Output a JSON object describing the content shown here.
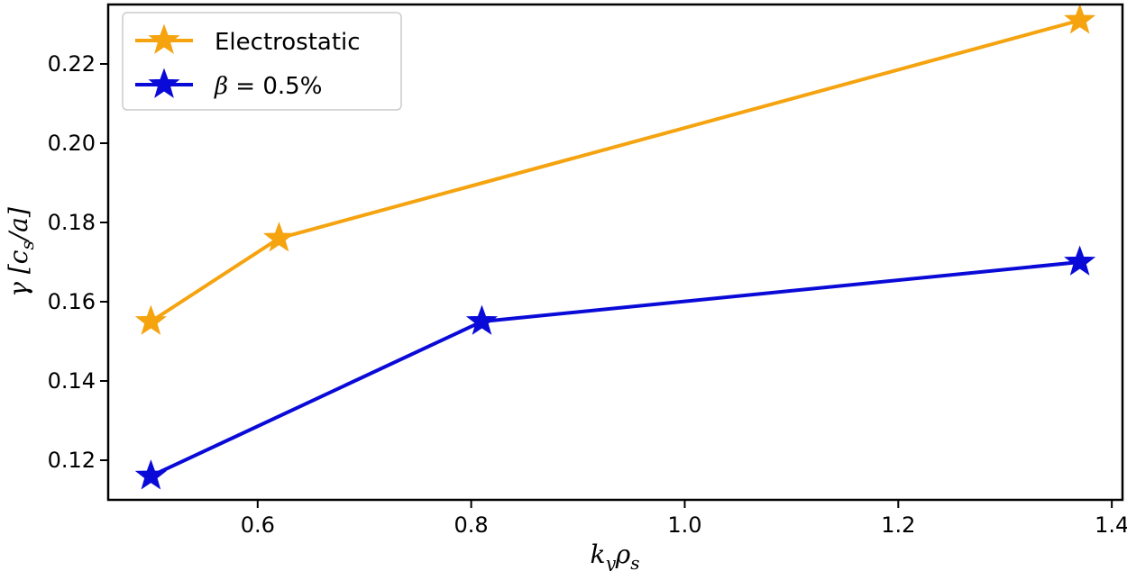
{
  "chart_data": {
    "type": "line",
    "title": "",
    "xlabel": "k_y ρ_s",
    "xlabel_parts": {
      "main1": "k",
      "sub1": "y",
      "main2": "ρ",
      "sub2": "s"
    },
    "ylabel": "γ [c_s/a]",
    "ylabel_parts": {
      "pre": "γ [c",
      "sub": "s",
      "post": "/a]"
    },
    "xlim": [
      0.46,
      1.41
    ],
    "ylim": [
      0.11,
      0.235
    ],
    "xticks": [
      0.6,
      0.8,
      1.0,
      1.2,
      1.4
    ],
    "xtick_labels": [
      "0.6",
      "0.8",
      "1.0",
      "1.2",
      "1.4"
    ],
    "yticks": [
      0.12,
      0.14,
      0.16,
      0.18,
      0.2,
      0.22
    ],
    "ytick_labels": [
      "0.12",
      "0.14",
      "0.16",
      "0.18",
      "0.20",
      "0.22"
    ],
    "grid": false,
    "legend_position": "top-left",
    "series": [
      {
        "name": "Electrostatic",
        "color": "#F5A30F",
        "marker": "star",
        "x": [
          0.5,
          0.62,
          1.37
        ],
        "y": [
          0.155,
          0.176,
          0.231
        ]
      },
      {
        "name": "β = 0.5%",
        "name_parts": {
          "symbol": "β",
          "rest": " = 0.5%"
        },
        "color": "#0A0AD8",
        "marker": "star",
        "x": [
          0.5,
          0.81,
          1.37
        ],
        "y": [
          0.116,
          0.155,
          0.17
        ]
      }
    ]
  }
}
